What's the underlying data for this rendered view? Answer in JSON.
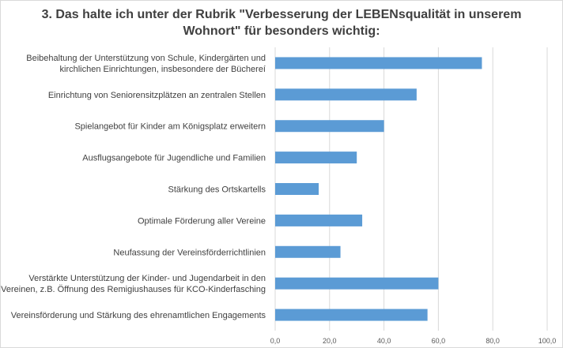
{
  "chart_data": {
    "type": "bar",
    "orientation": "horizontal",
    "title_lines": [
      "3. Das halte ich unter der Rubrik \"Verbesserung der LEBENsqualität in unserem",
      "Wohnort\" für besonders wichtig:"
    ],
    "categories": [
      [
        "Beibehaltung der Unterstützung von Schule, Kindergärten und",
        "kirchlichen Einrichtungen, insbesondere der Büchereí"
      ],
      [
        "Einrichtung von Seniorensitzplätzen an zentralen Stellen"
      ],
      [
        "Spielangebot für Kinder am Königsplatz erweitern"
      ],
      [
        "Ausflugsangebote für Jugendliche und Familien"
      ],
      [
        "Stärkung des Ortskartells"
      ],
      [
        "Optimale Förderung aller Vereine"
      ],
      [
        "Neufassung der Vereinsförderrichtlinien"
      ],
      [
        "Verstärkte Unterstützung der Kinder- und Jugendarbeit in den",
        "Vereinen, z.B. Öffnung des Remigiushauses für KCO-Kinderfasching"
      ],
      [
        "Vereinsförderung und Stärkung des ehrenamtlichen Engagements"
      ]
    ],
    "values": [
      76,
      52,
      40,
      30,
      16,
      32,
      24,
      60,
      56
    ],
    "xlim": [
      0,
      100
    ],
    "xticks": [
      "0,0",
      "20,0",
      "40,0",
      "60,0",
      "80,0",
      "100,0"
    ],
    "grid": true,
    "legend": "none",
    "colors": {
      "bar": "#5b9bd5",
      "grid": "#d9d9d9",
      "text": "#404040"
    }
  }
}
